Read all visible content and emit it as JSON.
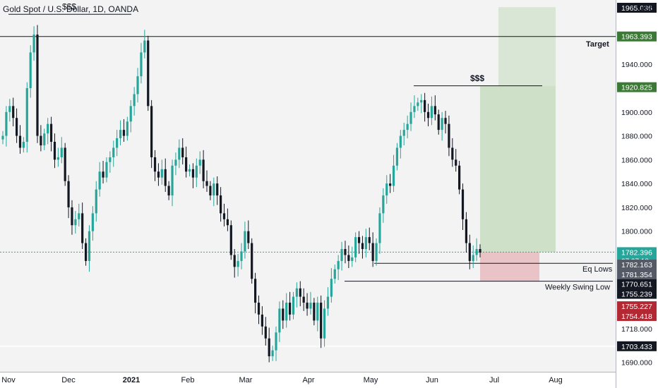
{
  "header": {
    "symbol_title": "Gold Spot / U.S. Dollar, 1D, OANDA",
    "currency": "USD"
  },
  "chart_data": {
    "type": "candlestick",
    "symbol": "XAUUSD",
    "timeframe": "1D",
    "xlabels": [
      "Nov",
      "Dec",
      "2021",
      "Feb",
      "Mar",
      "Apr",
      "May",
      "Jun",
      "Jul",
      "Aug"
    ],
    "yticks": [
      1690.0,
      1718.0,
      1800.0,
      1820.0,
      1840.0,
      1860.0,
      1880.0,
      1900.0,
      1940.0
    ],
    "ylim": [
      1682,
      1994
    ],
    "series_close": [
      1880,
      1900,
      1905,
      1895,
      1880,
      1870,
      1875,
      1920,
      1950,
      1965,
      1880,
      1872,
      1882,
      1890,
      1875,
      1860,
      1862,
      1870,
      1842,
      1820,
      1805,
      1810,
      1815,
      1790,
      1775,
      1800,
      1815,
      1835,
      1850,
      1845,
      1858,
      1862,
      1870,
      1878,
      1885,
      1880,
      1892,
      1905,
      1915,
      1930,
      1950,
      1960,
      1905,
      1862,
      1850,
      1845,
      1852,
      1838,
      1830,
      1855,
      1860,
      1870,
      1862,
      1850,
      1852,
      1845,
      1855,
      1860,
      1842,
      1838,
      1830,
      1840,
      1830,
      1815,
      1810,
      1805,
      1780,
      1770,
      1775,
      1783,
      1800,
      1790,
      1760,
      1740,
      1730,
      1720,
      1710,
      1695,
      1700,
      1715,
      1735,
      1725,
      1740,
      1730,
      1745,
      1752,
      1745,
      1740,
      1735,
      1740,
      1725,
      1740,
      1710,
      1735,
      1745,
      1760,
      1768,
      1775,
      1785,
      1780,
      1775,
      1778,
      1795,
      1790,
      1785,
      1795,
      1790,
      1775,
      1790,
      1815,
      1830,
      1840,
      1838,
      1855,
      1870,
      1880,
      1885,
      1890,
      1900,
      1905,
      1908,
      1910,
      1900,
      1895,
      1905,
      1898,
      1885,
      1895,
      1890,
      1870,
      1860,
      1855,
      1835,
      1810,
      1790,
      1775,
      1780,
      1785,
      1782
    ],
    "price_labels": [
      {
        "label": "1963.393",
        "value": 1963.393,
        "bg": "#3a7a34"
      },
      {
        "label": "1920.825",
        "value": 1920.825,
        "bg": "#3a7a34"
      },
      {
        "label": "1782.396",
        "sub": "07:07:18",
        "value": 1782.396,
        "bg": "#26a69a"
      },
      {
        "label": "1782.163",
        "value": 1772.0,
        "bg": "#555b66"
      },
      {
        "label": "1781.354",
        "value": 1763.8,
        "bg": "#555b66"
      },
      {
        "label": "1770.651",
        "value": 1755.6,
        "bg": "#131722"
      },
      {
        "label": "1755.239",
        "value": 1747.4,
        "bg": "#131722"
      },
      {
        "label": "1755.227",
        "value": 1737.0,
        "bg": "#b22833"
      },
      {
        "label": "1754.418",
        "value": 1728.8,
        "bg": "#b22833"
      },
      {
        "label": "1703.433",
        "value": 1703.433,
        "bg": "#131722"
      },
      {
        "label": "1965.036",
        "value": 1987.5,
        "bg": "#131722"
      }
    ],
    "annotations": [
      {
        "text": "Target"
      },
      {
        "text": "$$$"
      },
      {
        "text": "$$$"
      },
      {
        "text": "Eq Lows"
      },
      {
        "text": "Weekly Swing Low"
      }
    ],
    "levels": [
      {
        "name": "target",
        "value": 1963.393
      },
      {
        "name": "eq-lows",
        "value": 1773
      },
      {
        "name": "weekly-swing-low",
        "value": 1758
      },
      {
        "name": "support",
        "value": 1703.433
      },
      {
        "name": "liquidity-high",
        "value": 1922
      }
    ],
    "colors": {
      "up": "#26a69a",
      "down": "#131722",
      "bg": "#f3f3f3",
      "axis_bg": "#ffffff",
      "profit": "#bcd6b2",
      "loss": "#e7b3b8"
    }
  }
}
